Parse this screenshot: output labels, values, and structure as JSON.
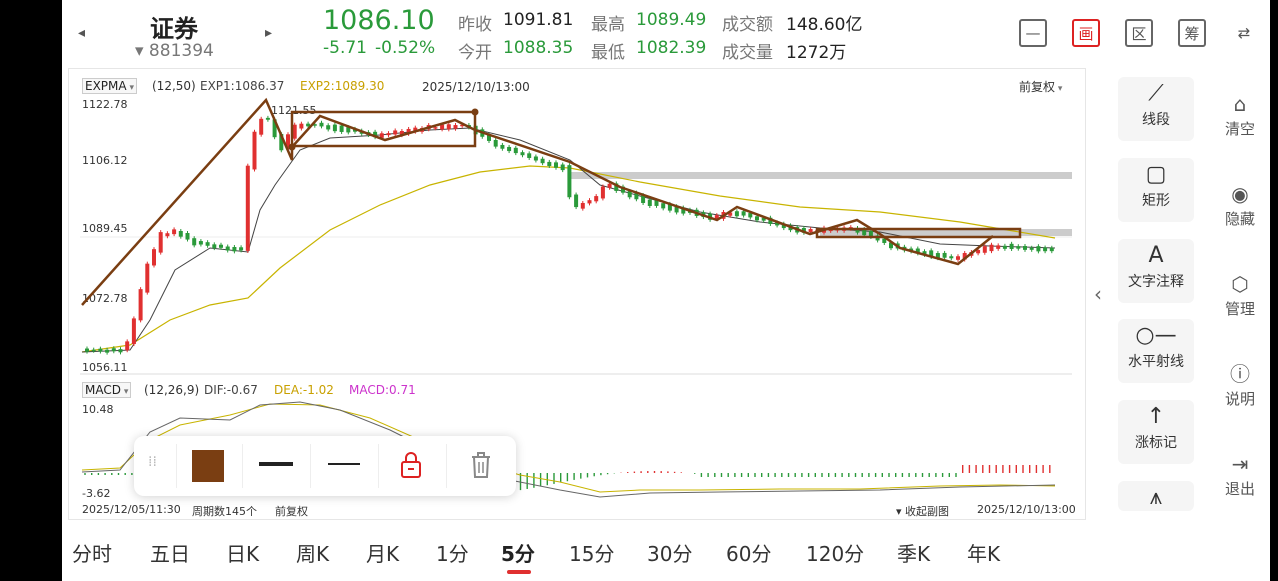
{
  "header": {
    "title": "证券",
    "code": "▾ 881394",
    "price": "1086.10",
    "change": "-5.71",
    "change_pct": "-0.52%",
    "prev_close_label": "昨收",
    "prev_close": "1091.81",
    "high_label": "最高",
    "high": "1089.49",
    "turnover_label": "成交额",
    "turnover": "148.60亿",
    "open_label": "今开",
    "open": "1088.35",
    "low_label": "最低",
    "low": "1082.39",
    "volume_label": "成交量",
    "volume": "1272万",
    "buttons": [
      "—",
      "画",
      "区",
      "筹",
      "⇄"
    ]
  },
  "chart": {
    "indicator": "EXPMA",
    "params": "(12,50)",
    "exp1": "EXP1:1086.37",
    "exp2": "EXP2:1089.30",
    "datetime": "2025/12/10/13:00",
    "adjust": "前复权",
    "y_ticks": [
      "1122.78",
      "1106.12",
      "1089.45",
      "1072.78",
      "1056.11"
    ],
    "peak_label": "1121.55",
    "macd_name": "MACD",
    "macd_params": "(12,26,9)",
    "dif": "DIF:-0.67",
    "dea": "DEA:-1.02",
    "macd": "MACD:0.71",
    "macd_top": "10.48",
    "macd_bottom": "-3.62",
    "start_time": "2025/12/05/11:30",
    "period_count": "周期数145个",
    "footer_adjust": "前复权",
    "collapse": "收起副图",
    "end_time": "2025/12/10/13:00",
    "colors": {
      "up": "#e03030",
      "down": "#2a9a3a",
      "exp1": "#444444",
      "exp2": "#c8b400",
      "drawing": "#7a3e12",
      "macd_dea": "#c8b400",
      "macd_val": "#cc33cc"
    }
  },
  "tools": [
    "线段",
    "矩形",
    "文字注释",
    "水平射线",
    "涨标记"
  ],
  "side": [
    "清空",
    "隐藏",
    "管理",
    "说明",
    "退出"
  ],
  "timeframes": [
    "分时",
    "五日",
    "日K",
    "周K",
    "月K",
    "1分",
    "5分",
    "15分",
    "30分",
    "60分",
    "120分",
    "季K",
    "年K"
  ],
  "active_timeframe": "5分"
}
